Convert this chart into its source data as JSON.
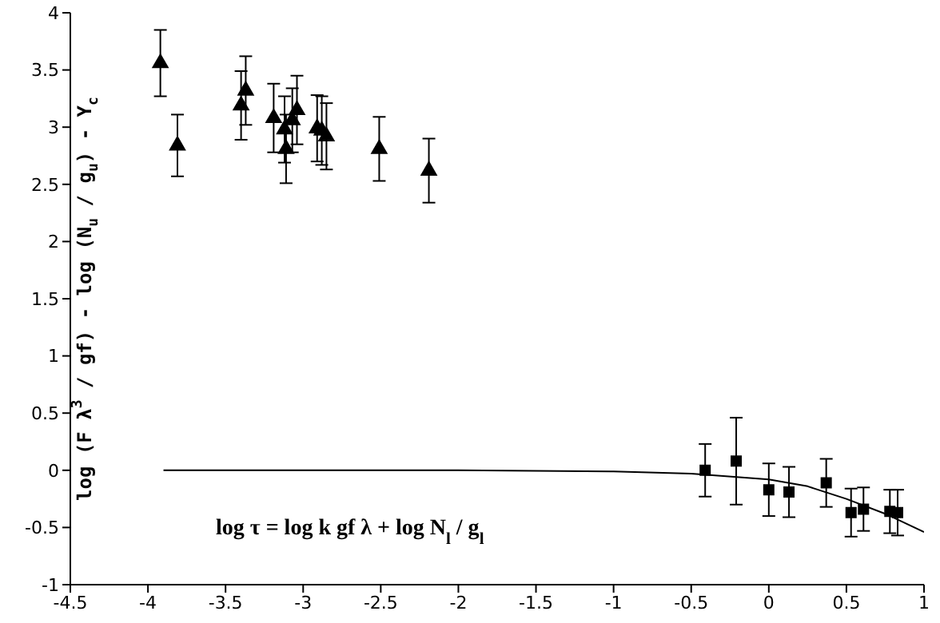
{
  "chart_data": {
    "type": "scatter",
    "ylabel": "log (F λ$^{3}$ / gf) - log (N$_{u}$ / g$_{u}$) - Y$_{c}$",
    "annotations": [
      "log τ = log k gf λ + log N$_{l}$ / g$_{l}$"
    ],
    "xlim": [
      -4.5,
      1
    ],
    "xticks": [
      -4.5,
      -4,
      -3.5,
      -3,
      -2.5,
      -2,
      -1.5,
      -1,
      -0.5,
      0,
      0.5,
      1
    ],
    "ylim": [
      -1,
      4
    ],
    "yticks": [
      -1,
      -0.5,
      0,
      0.5,
      1,
      1.5,
      2,
      2.5,
      3,
      3.5,
      4
    ],
    "grid": false,
    "legend": false,
    "series": [
      {
        "marker": "triangle",
        "color": "#000000",
        "x": [
          -3.92,
          -3.81,
          -3.4,
          -3.37,
          -3.19,
          -3.12,
          -3.11,
          -3.07,
          -3.04,
          -2.91,
          -2.88,
          -2.85,
          -2.51,
          -2.19
        ],
        "values": [
          3.56,
          2.84,
          3.19,
          3.32,
          3.08,
          2.98,
          2.81,
          3.06,
          3.15,
          2.99,
          2.97,
          2.92,
          2.81,
          2.62
        ],
        "errors": [
          0.29,
          0.27,
          0.3,
          0.3,
          0.3,
          0.29,
          0.3,
          0.28,
          0.3,
          0.29,
          0.3,
          0.29,
          0.28,
          0.28
        ]
      },
      {
        "marker": "square",
        "color": "#000000",
        "x": [
          -0.41,
          -0.21,
          0.0,
          0.13,
          0.37,
          0.53,
          0.61,
          0.78,
          0.83
        ],
        "values": [
          0.0,
          0.08,
          -0.17,
          -0.19,
          -0.11,
          -0.37,
          -0.34,
          -0.36,
          -0.37
        ],
        "errors": [
          0.23,
          0.38,
          0.23,
          0.22,
          0.21,
          0.21,
          0.19,
          0.19,
          0.2
        ]
      },
      {
        "type": "line",
        "marker": "none",
        "line_style": "solid",
        "color": "#000000",
        "x": [
          -3.9,
          -2,
          -1,
          -0.5,
          0,
          0.25,
          0.5,
          0.75,
          1
        ],
        "values": [
          0,
          0,
          -0.01,
          -0.03,
          -0.08,
          -0.14,
          -0.25,
          -0.38,
          -0.54
        ]
      }
    ]
  }
}
